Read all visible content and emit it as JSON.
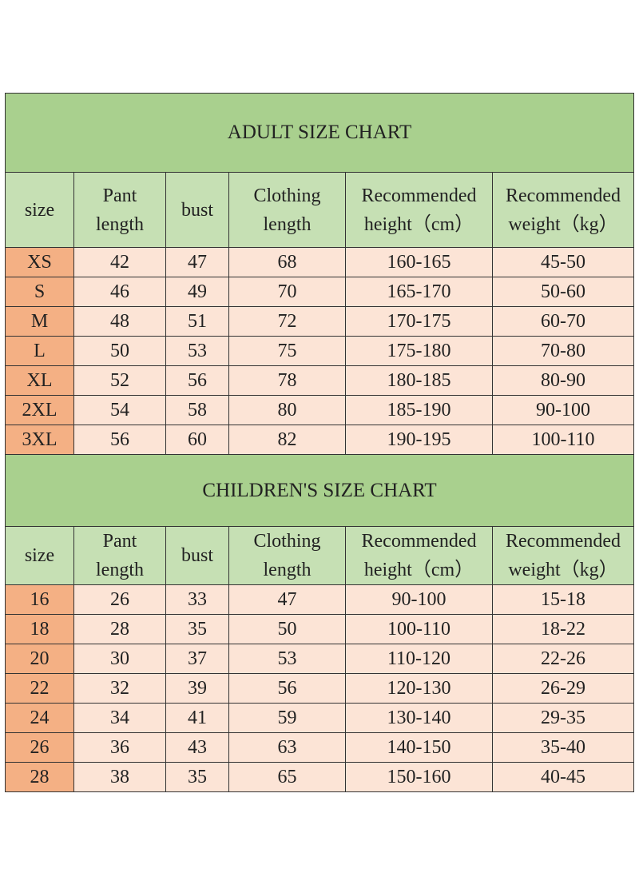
{
  "sections": [
    {
      "title": "ADULT SIZE CHART",
      "header": [
        [
          "size"
        ],
        [
          "Pant",
          "length"
        ],
        [
          "bust"
        ],
        [
          "Clothing",
          "length"
        ],
        [
          "Recommended",
          "height（cm）"
        ],
        [
          "Recommended",
          "weight（kg）"
        ]
      ],
      "rows": [
        [
          "XS",
          42,
          47,
          68,
          "160-165",
          "45-50"
        ],
        [
          "S",
          46,
          49,
          70,
          "165-170",
          "50-60"
        ],
        [
          "M",
          48,
          51,
          72,
          "170-175",
          "60-70"
        ],
        [
          "L",
          50,
          53,
          75,
          "175-180",
          "70-80"
        ],
        [
          "XL",
          52,
          56,
          78,
          "180-185",
          "80-90"
        ],
        [
          "2XL",
          54,
          58,
          80,
          "185-190",
          "90-100"
        ],
        [
          "3XL",
          56,
          60,
          82,
          "190-195",
          "100-110"
        ]
      ]
    },
    {
      "title": "CHILDREN'S SIZE CHART",
      "header": [
        [
          "size"
        ],
        [
          "Pant",
          "length"
        ],
        [
          "bust"
        ],
        [
          "Clothing",
          "length"
        ],
        [
          "Recommended",
          "height（cm）"
        ],
        [
          "Recommended",
          "weight（kg）"
        ]
      ],
      "rows": [
        [
          16,
          26,
          33,
          47,
          "90-100",
          "15-18"
        ],
        [
          18,
          28,
          35,
          50,
          "100-110",
          "18-22"
        ],
        [
          20,
          30,
          37,
          53,
          "110-120",
          "22-26"
        ],
        [
          22,
          32,
          39,
          56,
          "120-130",
          "26-29"
        ],
        [
          24,
          34,
          41,
          59,
          "130-140",
          "29-35"
        ],
        [
          26,
          36,
          43,
          63,
          "140-150",
          "35-40"
        ],
        [
          28,
          38,
          35,
          65,
          "150-160",
          "40-45"
        ]
      ]
    }
  ]
}
